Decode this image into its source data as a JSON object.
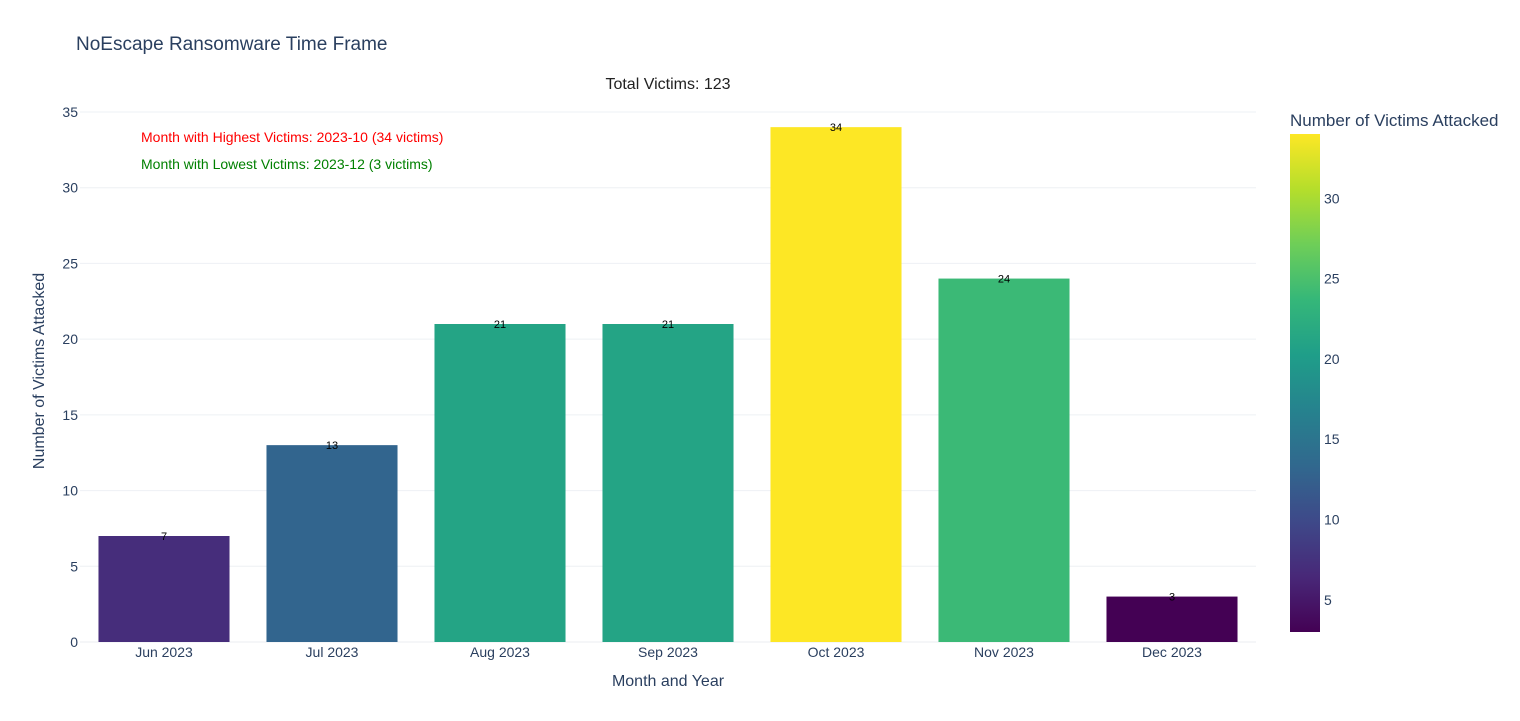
{
  "chart_data": {
    "type": "bar",
    "title": "NoEscape Ransomware Time Frame",
    "subtitle": "Total Victims: 123",
    "xlabel": "Month and Year",
    "ylabel": "Number of Victims Attacked",
    "categories": [
      "Jun 2023",
      "Jul 2023",
      "Aug 2023",
      "Sep 2023",
      "Oct 2023",
      "Nov 2023",
      "Dec 2023"
    ],
    "values": [
      7,
      13,
      21,
      21,
      34,
      24,
      3
    ],
    "ylim": [
      0,
      35
    ],
    "yticks": [
      0,
      5,
      10,
      15,
      20,
      25,
      30,
      35
    ],
    "grid": true,
    "colorscale": "Viridis",
    "colorbar": {
      "title": "Number of Victims Attacked",
      "range": [
        3,
        34
      ],
      "ticks": [
        5,
        10,
        15,
        20,
        25,
        30
      ]
    },
    "annotations": [
      {
        "text": "Month with Highest Victims: 2023-10 (34 victims)",
        "color": "#ff0000"
      },
      {
        "text": "Month with Lowest Victims: 2023-12 (3 victims)",
        "color": "#008000"
      }
    ]
  }
}
